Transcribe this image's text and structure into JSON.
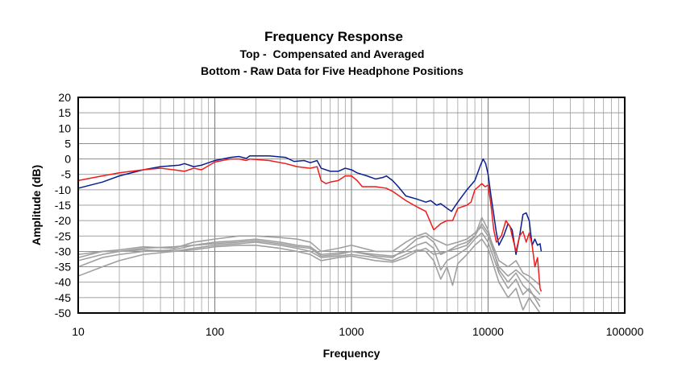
{
  "chart_data": {
    "type": "line",
    "title": "Frequency Response",
    "subtitle_lines": [
      "Top -  Compensated and Averaged",
      "Bottom - Raw Data for Five Headphone Positions"
    ],
    "xlabel": "Frequency",
    "ylabel": "Amplitude (dB)",
    "x_scale": "log",
    "xlim": [
      10,
      100000
    ],
    "ylim": [
      -50,
      20
    ],
    "grid": true,
    "legend": "none",
    "x_ticks": [
      10,
      100,
      1000,
      10000,
      100000
    ],
    "x_tick_labels": [
      "10",
      "100",
      "1000",
      "10000",
      "100000"
    ],
    "y_ticks": [
      20,
      15,
      10,
      5,
      0,
      -5,
      -10,
      -15,
      -20,
      -25,
      -30,
      -35,
      -40,
      -45,
      -50
    ],
    "y_tick_labels": [
      "20",
      "15",
      "10",
      "5",
      "0",
      "-5",
      "-10",
      "-15",
      "-20",
      "-25",
      "-30",
      "-35",
      "-40",
      "-45",
      "-50"
    ],
    "colors": {
      "blue": "#0a1f8f",
      "red": "#ee1c1c",
      "gray": "#a0a0a0",
      "grid": "#808080",
      "plot_border": "#000000"
    },
    "series": [
      {
        "color": "#0a1f8f",
        "points": [
          [
            10,
            -9.5
          ],
          [
            15,
            -7.5
          ],
          [
            20,
            -5.5
          ],
          [
            30,
            -3.5
          ],
          [
            40,
            -2.5
          ],
          [
            55,
            -2
          ],
          [
            60,
            -1.5
          ],
          [
            70,
            -2.5
          ],
          [
            80,
            -2
          ],
          [
            100,
            -0.5
          ],
          [
            130,
            0.5
          ],
          [
            150,
            0.8
          ],
          [
            170,
            0.2
          ],
          [
            180,
            1
          ],
          [
            250,
            1
          ],
          [
            330,
            0.5
          ],
          [
            380,
            -0.8
          ],
          [
            450,
            -0.5
          ],
          [
            500,
            -1.2
          ],
          [
            560,
            -0.5
          ],
          [
            600,
            -3
          ],
          [
            700,
            -4
          ],
          [
            800,
            -4
          ],
          [
            900,
            -3
          ],
          [
            1000,
            -3.5
          ],
          [
            1100,
            -4.5
          ],
          [
            1300,
            -5.5
          ],
          [
            1500,
            -6.5
          ],
          [
            1700,
            -6
          ],
          [
            1800,
            -5.5
          ],
          [
            2000,
            -7
          ],
          [
            2200,
            -9
          ],
          [
            2500,
            -12
          ],
          [
            3000,
            -13
          ],
          [
            3500,
            -14
          ],
          [
            3800,
            -13.5
          ],
          [
            4200,
            -15
          ],
          [
            4500,
            -14.5
          ],
          [
            5000,
            -16
          ],
          [
            5400,
            -17
          ],
          [
            6000,
            -14
          ],
          [
            7000,
            -10
          ],
          [
            8000,
            -7
          ],
          [
            8800,
            -2
          ],
          [
            9200,
            0
          ],
          [
            9600,
            -1.5
          ],
          [
            10000,
            -5
          ],
          [
            10500,
            -12
          ],
          [
            11000,
            -18
          ],
          [
            11500,
            -24
          ],
          [
            12000,
            -28
          ],
          [
            13000,
            -25
          ],
          [
            14000,
            -21
          ],
          [
            15000,
            -23
          ],
          [
            16000,
            -31
          ],
          [
            17000,
            -25
          ],
          [
            18000,
            -18
          ],
          [
            19000,
            -17.5
          ],
          [
            20000,
            -20
          ],
          [
            21000,
            -28
          ],
          [
            22000,
            -26
          ],
          [
            23000,
            -28
          ],
          [
            24000,
            -27.5
          ],
          [
            24500,
            -30
          ]
        ]
      },
      {
        "color": "#ee1c1c",
        "points": [
          [
            10,
            -7
          ],
          [
            15,
            -5.5
          ],
          [
            20,
            -4.5
          ],
          [
            30,
            -3.5
          ],
          [
            40,
            -3
          ],
          [
            50,
            -3.5
          ],
          [
            60,
            -4
          ],
          [
            70,
            -3
          ],
          [
            80,
            -3.5
          ],
          [
            100,
            -1
          ],
          [
            130,
            0
          ],
          [
            150,
            0
          ],
          [
            170,
            -0.5
          ],
          [
            180,
            0
          ],
          [
            250,
            -0.5
          ],
          [
            330,
            -1.5
          ],
          [
            400,
            -2.5
          ],
          [
            500,
            -3
          ],
          [
            560,
            -2.5
          ],
          [
            600,
            -7
          ],
          [
            650,
            -8
          ],
          [
            700,
            -7.5
          ],
          [
            800,
            -7
          ],
          [
            900,
            -5.5
          ],
          [
            1000,
            -5.5
          ],
          [
            1100,
            -7
          ],
          [
            1200,
            -9
          ],
          [
            1500,
            -9
          ],
          [
            1800,
            -9.5
          ],
          [
            2000,
            -10.5
          ],
          [
            2500,
            -13.5
          ],
          [
            3000,
            -15.5
          ],
          [
            3500,
            -17
          ],
          [
            4000,
            -23
          ],
          [
            4500,
            -21
          ],
          [
            5000,
            -20
          ],
          [
            5500,
            -20
          ],
          [
            6000,
            -16
          ],
          [
            7000,
            -15
          ],
          [
            7500,
            -14
          ],
          [
            8000,
            -10
          ],
          [
            8500,
            -9
          ],
          [
            9000,
            -8
          ],
          [
            9500,
            -9
          ],
          [
            10000,
            -8.5
          ],
          [
            10500,
            -15
          ],
          [
            11000,
            -23
          ],
          [
            11500,
            -27
          ],
          [
            12500,
            -25
          ],
          [
            13000,
            -22.5
          ],
          [
            13500,
            -20
          ],
          [
            14500,
            -22
          ],
          [
            15000,
            -25
          ],
          [
            16000,
            -30
          ],
          [
            17000,
            -25
          ],
          [
            18000,
            -23.5
          ],
          [
            19000,
            -27
          ],
          [
            20000,
            -24
          ],
          [
            21000,
            -28
          ],
          [
            22000,
            -35
          ],
          [
            23000,
            -32
          ],
          [
            24000,
            -42
          ],
          [
            24500,
            -43
          ]
        ]
      },
      {
        "color": "#a0a0a0",
        "points": [
          [
            10,
            -32
          ],
          [
            15,
            -30
          ],
          [
            20,
            -29.5
          ],
          [
            30,
            -28.5
          ],
          [
            50,
            -29
          ],
          [
            70,
            -27
          ],
          [
            100,
            -26
          ],
          [
            150,
            -25
          ],
          [
            200,
            -25
          ],
          [
            300,
            -25.5
          ],
          [
            400,
            -26
          ],
          [
            500,
            -27
          ],
          [
            600,
            -30
          ],
          [
            800,
            -29
          ],
          [
            1000,
            -28
          ],
          [
            1500,
            -30
          ],
          [
            2000,
            -30
          ],
          [
            2500,
            -27
          ],
          [
            3000,
            -25
          ],
          [
            3500,
            -24
          ],
          [
            4000,
            -26
          ],
          [
            5000,
            -28
          ],
          [
            6000,
            -27
          ],
          [
            7000,
            -26
          ],
          [
            8000,
            -24
          ],
          [
            9000,
            -22
          ],
          [
            10000,
            -25
          ],
          [
            12000,
            -35
          ],
          [
            14000,
            -38
          ],
          [
            16000,
            -36
          ],
          [
            18000,
            -38
          ],
          [
            20000,
            -40
          ],
          [
            24000,
            -44
          ]
        ]
      },
      {
        "color": "#a0a0a0",
        "points": [
          [
            10,
            -35
          ],
          [
            15,
            -32
          ],
          [
            20,
            -31
          ],
          [
            30,
            -30
          ],
          [
            50,
            -29.5
          ],
          [
            70,
            -28
          ],
          [
            100,
            -27
          ],
          [
            150,
            -26.5
          ],
          [
            200,
            -26
          ],
          [
            300,
            -27
          ],
          [
            400,
            -28
          ],
          [
            500,
            -28.5
          ],
          [
            600,
            -31
          ],
          [
            800,
            -30.5
          ],
          [
            1000,
            -30
          ],
          [
            1500,
            -31
          ],
          [
            2000,
            -31.5
          ],
          [
            2500,
            -30
          ],
          [
            3000,
            -28
          ],
          [
            3500,
            -27
          ],
          [
            4000,
            -29
          ],
          [
            4500,
            -36
          ],
          [
            5000,
            -33
          ],
          [
            6000,
            -31
          ],
          [
            7000,
            -29
          ],
          [
            8000,
            -26
          ],
          [
            9000,
            -24
          ],
          [
            10000,
            -27
          ],
          [
            12000,
            -37
          ],
          [
            14000,
            -42
          ],
          [
            16000,
            -39
          ],
          [
            18000,
            -44
          ],
          [
            20000,
            -42
          ],
          [
            24000,
            -48
          ]
        ]
      },
      {
        "color": "#a0a0a0",
        "points": [
          [
            10,
            -38
          ],
          [
            15,
            -35
          ],
          [
            20,
            -33
          ],
          [
            30,
            -31
          ],
          [
            50,
            -30
          ],
          [
            70,
            -29
          ],
          [
            100,
            -28
          ],
          [
            150,
            -27.5
          ],
          [
            200,
            -27
          ],
          [
            300,
            -28
          ],
          [
            400,
            -29
          ],
          [
            500,
            -30
          ],
          [
            600,
            -32
          ],
          [
            800,
            -31.5
          ],
          [
            1000,
            -31
          ],
          [
            1500,
            -32
          ],
          [
            2000,
            -33
          ],
          [
            2500,
            -31
          ],
          [
            3000,
            -29.5
          ],
          [
            3500,
            -30
          ],
          [
            4000,
            -33
          ],
          [
            4500,
            -39
          ],
          [
            5000,
            -35
          ],
          [
            5500,
            -41
          ],
          [
            6000,
            -34
          ],
          [
            7000,
            -31
          ],
          [
            8000,
            -28
          ],
          [
            9000,
            -26
          ],
          [
            10000,
            -29
          ],
          [
            12000,
            -40
          ],
          [
            14000,
            -45
          ],
          [
            16000,
            -42
          ],
          [
            18000,
            -49
          ],
          [
            20000,
            -45
          ],
          [
            24000,
            -50
          ]
        ]
      },
      {
        "color": "#a0a0a0",
        "points": [
          [
            10,
            -31
          ],
          [
            15,
            -30
          ],
          [
            20,
            -30
          ],
          [
            30,
            -29.5
          ],
          [
            50,
            -30
          ],
          [
            70,
            -29.5
          ],
          [
            100,
            -28.5
          ],
          [
            150,
            -28
          ],
          [
            200,
            -28
          ],
          [
            300,
            -29
          ],
          [
            400,
            -30
          ],
          [
            500,
            -31
          ],
          [
            600,
            -33
          ],
          [
            800,
            -32
          ],
          [
            1000,
            -31.5
          ],
          [
            1500,
            -33
          ],
          [
            2000,
            -33.5
          ],
          [
            2500,
            -32
          ],
          [
            3000,
            -30
          ],
          [
            3500,
            -29
          ],
          [
            4000,
            -31
          ],
          [
            5000,
            -30
          ],
          [
            6000,
            -29
          ],
          [
            7000,
            -28
          ],
          [
            8000,
            -25
          ],
          [
            9000,
            -21
          ],
          [
            10000,
            -24
          ],
          [
            12000,
            -33
          ],
          [
            14000,
            -35
          ],
          [
            16000,
            -33
          ],
          [
            18000,
            -37
          ],
          [
            20000,
            -38
          ],
          [
            24000,
            -41
          ]
        ]
      },
      {
        "color": "#a0a0a0",
        "points": [
          [
            10,
            -33
          ],
          [
            15,
            -31
          ],
          [
            20,
            -30
          ],
          [
            30,
            -29
          ],
          [
            50,
            -28.5
          ],
          [
            70,
            -28
          ],
          [
            100,
            -27.5
          ],
          [
            150,
            -27
          ],
          [
            200,
            -26.5
          ],
          [
            300,
            -27.5
          ],
          [
            400,
            -28.5
          ],
          [
            500,
            -29
          ],
          [
            600,
            -31.5
          ],
          [
            800,
            -31
          ],
          [
            1000,
            -30
          ],
          [
            1500,
            -31.5
          ],
          [
            2000,
            -32
          ],
          [
            2500,
            -29
          ],
          [
            3000,
            -26
          ],
          [
            3500,
            -25
          ],
          [
            4000,
            -27
          ],
          [
            4500,
            -31
          ],
          [
            5000,
            -30
          ],
          [
            6000,
            -28
          ],
          [
            7000,
            -27
          ],
          [
            8000,
            -25
          ],
          [
            9000,
            -19
          ],
          [
            10000,
            -23
          ],
          [
            12000,
            -36
          ],
          [
            14000,
            -40
          ],
          [
            16000,
            -37
          ],
          [
            18000,
            -41
          ],
          [
            20000,
            -43
          ],
          [
            24000,
            -46
          ]
        ]
      }
    ]
  }
}
